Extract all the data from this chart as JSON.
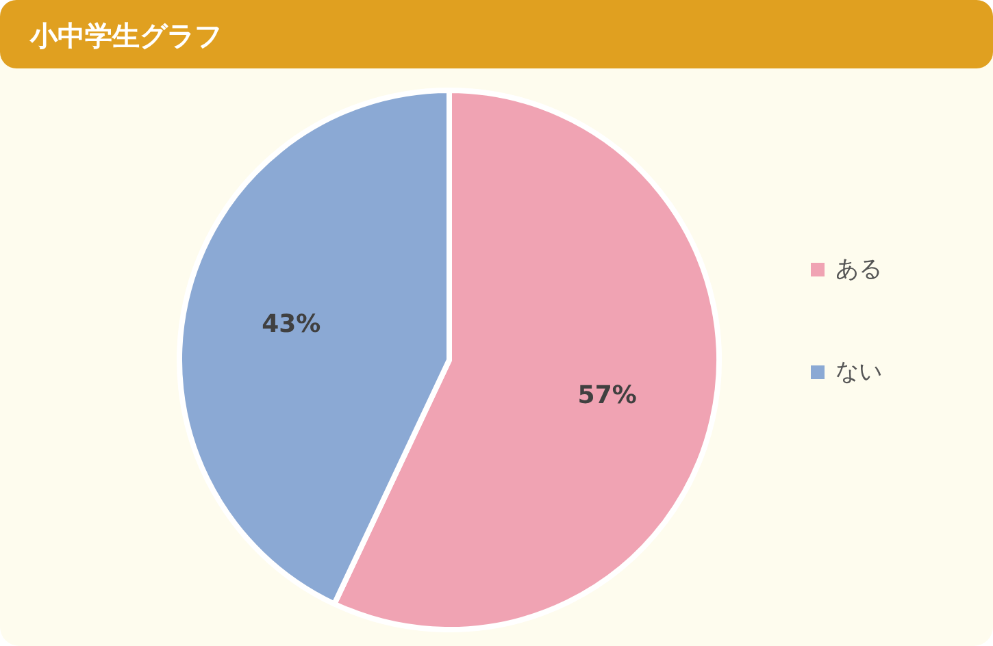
{
  "chart_data": {
    "type": "pie",
    "title": "小中学生グラフ",
    "categories": [
      "ある",
      "ない"
    ],
    "values": [
      57,
      43
    ],
    "colors": [
      "#f0a3b3",
      "#8ba9d4"
    ],
    "value_labels": [
      "57%",
      "43%"
    ],
    "legend": "right"
  }
}
